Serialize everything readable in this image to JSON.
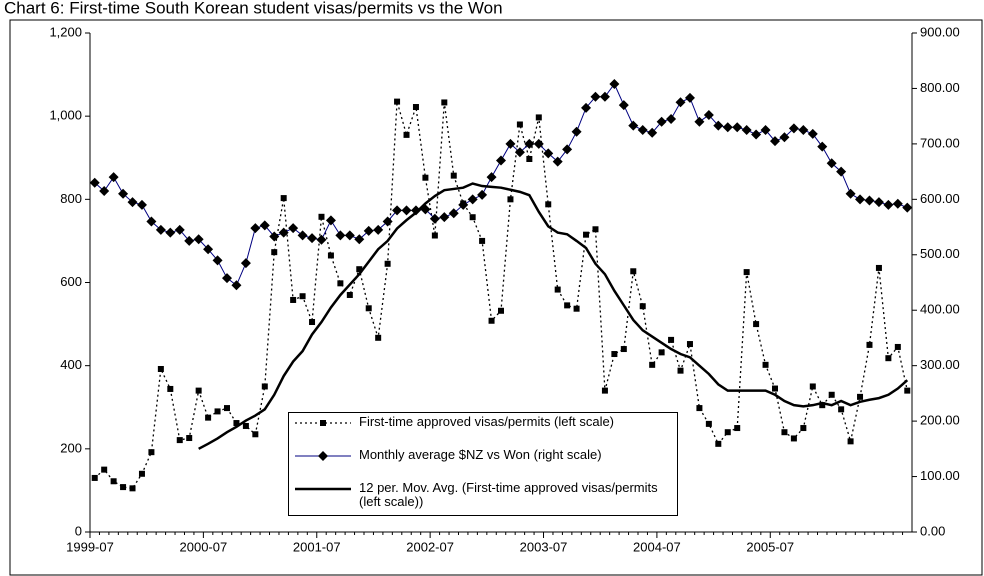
{
  "chart_data": {
    "type": "line",
    "title": "Chart 6: First-time South Korean student visas/permits vs the Won",
    "categories": [
      "1999-07",
      null,
      null,
      null,
      null,
      null,
      null,
      null,
      null,
      null,
      null,
      null,
      "2000-07",
      null,
      null,
      null,
      null,
      null,
      null,
      null,
      null,
      null,
      null,
      null,
      "2001-07",
      null,
      null,
      null,
      null,
      null,
      null,
      null,
      null,
      null,
      null,
      null,
      "2002-07",
      null,
      null,
      null,
      null,
      null,
      null,
      null,
      null,
      null,
      null,
      null,
      "2003-07",
      null,
      null,
      null,
      null,
      null,
      null,
      null,
      null,
      null,
      null,
      null,
      "2004-07",
      null,
      null,
      null,
      null,
      null,
      null,
      null,
      null,
      null,
      null,
      null,
      "2005-07",
      null,
      null,
      null,
      null,
      null,
      null,
      null,
      null,
      null,
      null,
      null,
      null,
      null,
      null
    ],
    "ylim": [
      0,
      1200
    ],
    "yticks": [
      0,
      200,
      400,
      600,
      800,
      {
        "value": 1000,
        "label": "1,000"
      },
      {
        "value": 1200,
        "label": "1,200"
      }
    ],
    "y2lim": [
      0,
      900
    ],
    "y2ticks": [
      {
        "value": 0,
        "label": "0.00"
      },
      {
        "value": 100,
        "label": "100.00"
      },
      {
        "value": 200,
        "label": "200.00"
      },
      {
        "value": 300,
        "label": "300.00"
      },
      {
        "value": 400,
        "label": "400.00"
      },
      {
        "value": 500,
        "label": "500.00"
      },
      {
        "value": 600,
        "label": "600.00"
      },
      {
        "value": 700,
        "label": "700.00"
      },
      {
        "value": 800,
        "label": "800.00"
      },
      {
        "value": 900,
        "label": "900.00"
      }
    ],
    "grid": false,
    "series": [
      {
        "name": "First-time approved visas/permits (left scale)",
        "color": "#000000",
        "line_style": "dotted",
        "marker": "square",
        "values": [
          130,
          150,
          122,
          108,
          105,
          140,
          192,
          392,
          344,
          221,
          226,
          340,
          275,
          290,
          298,
          262,
          255,
          235,
          350,
          673,
          803,
          558,
          567,
          505,
          758,
          665,
          598,
          570,
          632,
          538,
          467,
          645,
          1035,
          955,
          1022,
          852,
          713,
          1033,
          857,
          790,
          757,
          700,
          508,
          532,
          800,
          980,
          897,
          997,
          788,
          583,
          545,
          537,
          715,
          728,
          340,
          428,
          440,
          627,
          543,
          402,
          432,
          462,
          388,
          452,
          298,
          260,
          212,
          240,
          250,
          625,
          500,
          402,
          345,
          240,
          225,
          250,
          350,
          305,
          330,
          295,
          218,
          325,
          450,
          635,
          418,
          445,
          340
        ]
      },
      {
        "name": "Monthly average $NZ vs Won (right scale)",
        "color": "#000080",
        "line_style": "solid",
        "marker": "diamond",
        "axis": "y2",
        "values": [
          630,
          615,
          640,
          610,
          595,
          590,
          560,
          545,
          540,
          545,
          525,
          528,
          510,
          490,
          458,
          445,
          485,
          548,
          553,
          533,
          540,
          548,
          535,
          530,
          527,
          562,
          535,
          535,
          528,
          543,
          545,
          560,
          580,
          580,
          580,
          582,
          565,
          568,
          575,
          590,
          600,
          608,
          640,
          670,
          700,
          685,
          700,
          700,
          683,
          668,
          690,
          722,
          765,
          785,
          785,
          808,
          770,
          733,
          725,
          720,
          740,
          745,
          775,
          783,
          740,
          752,
          733,
          730,
          730,
          725,
          717,
          725,
          705,
          712,
          728,
          725,
          718,
          695,
          665,
          650,
          610,
          600,
          598,
          595,
          590,
          592,
          585
        ]
      },
      {
        "name": "12 per. Mov. Avg. (First-time approved visas/permits (left scale))",
        "color": "#000000",
        "line_style": "thick",
        "marker": "none",
        "values": [
          null,
          null,
          null,
          null,
          null,
          null,
          null,
          null,
          null,
          null,
          null,
          200,
          212,
          225,
          240,
          253,
          268,
          280,
          295,
          330,
          375,
          410,
          435,
          475,
          505,
          540,
          570,
          595,
          620,
          650,
          680,
          700,
          730,
          750,
          768,
          790,
          808,
          822,
          825,
          828,
          838,
          832,
          830,
          828,
          823,
          818,
          810,
          770,
          735,
          720,
          716,
          700,
          683,
          645,
          620,
          580,
          545,
          510,
          485,
          470,
          455,
          440,
          428,
          420,
          400,
          380,
          355,
          340,
          340,
          340,
          340,
          340,
          330,
          315,
          305,
          302,
          305,
          310,
          305,
          315,
          305,
          313,
          318,
          322,
          330,
          345,
          365
        ]
      }
    ]
  }
}
